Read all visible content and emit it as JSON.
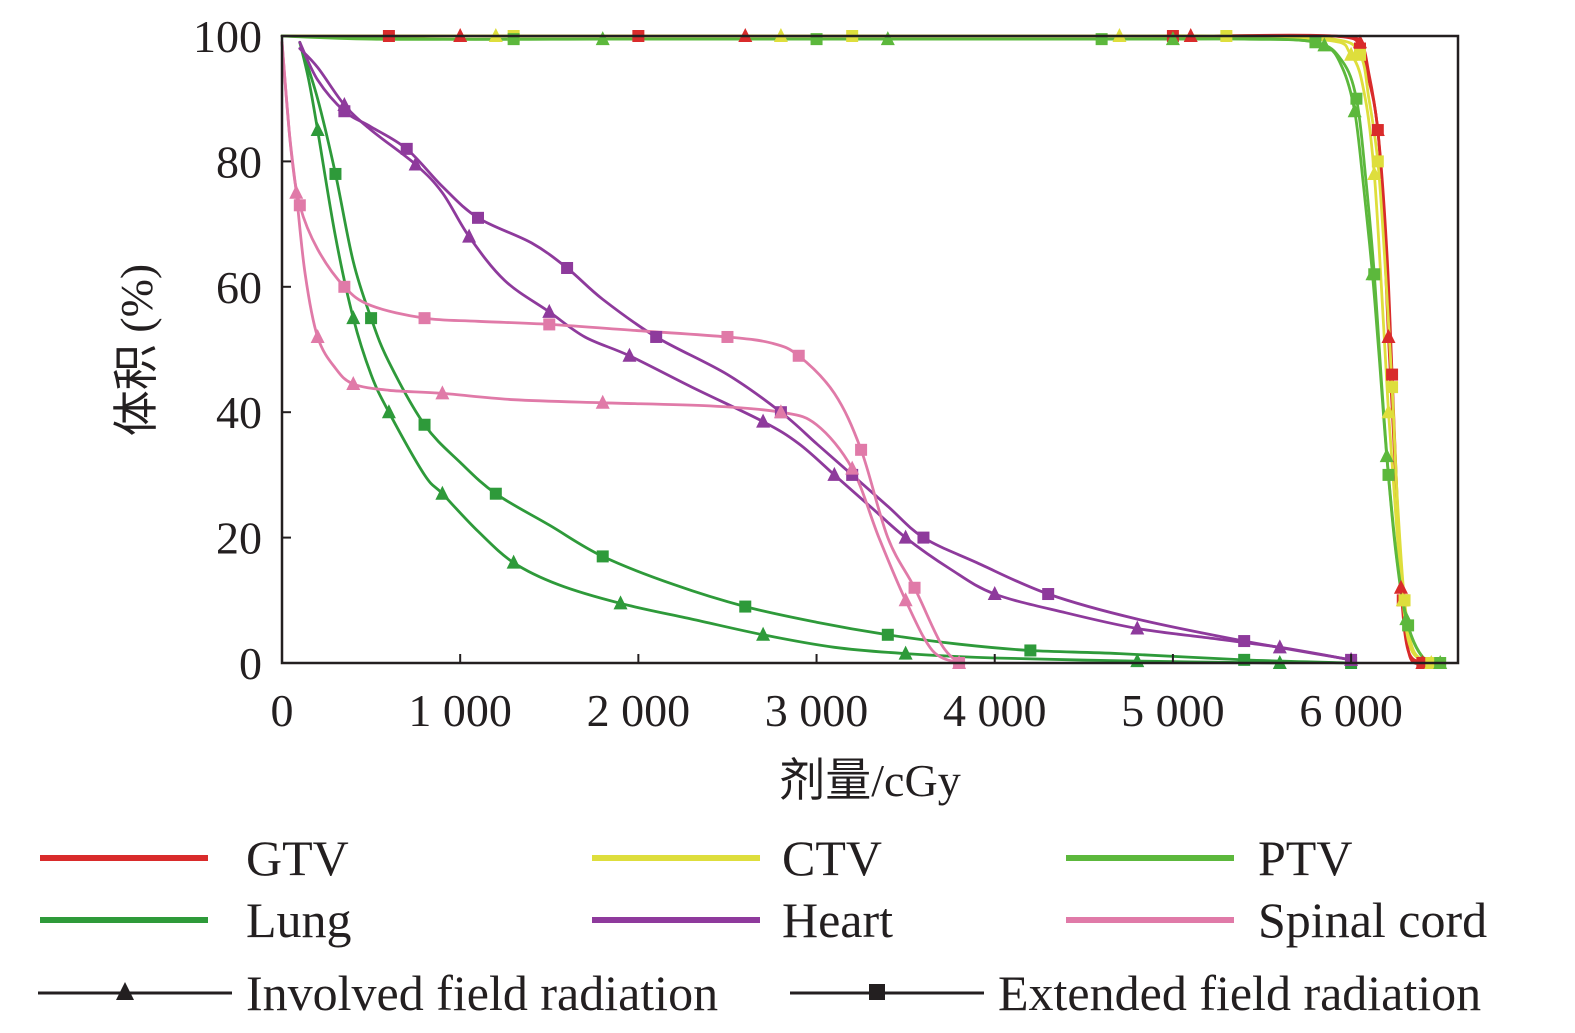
{
  "chart_data": {
    "type": "line",
    "title": "",
    "xlabel": "剂量/cGy",
    "ylabel": "体积 (%)",
    "xlim": [
      0,
      6600
    ],
    "ylim": [
      0,
      100
    ],
    "xticks": [
      0,
      1000,
      2000,
      3000,
      4000,
      5000,
      6000
    ],
    "xtick_labels": [
      "0",
      "1 000",
      "2 000",
      "3 000",
      "4 000",
      "5 000",
      "6 000"
    ],
    "yticks": [
      0,
      20,
      40,
      60,
      80,
      100
    ],
    "ytick_labels": [
      "0",
      "20",
      "40",
      "60",
      "80",
      "100"
    ],
    "grid": false,
    "legend": {
      "position": "bottom",
      "structures": [
        {
          "name": "GTV",
          "color": "#d92b2b"
        },
        {
          "name": "CTV",
          "color": "#dede3c"
        },
        {
          "name": "PTV",
          "color": "#5cb83c"
        },
        {
          "name": "Lung",
          "color": "#2e9a3a"
        },
        {
          "name": "Heart",
          "color": "#8e3a9c"
        },
        {
          "name": "Spinal cord",
          "color": "#e07aa8"
        }
      ],
      "markers": [
        {
          "name": "Involved field radiation",
          "marker": "triangle"
        },
        {
          "name": "Extended field radiation",
          "marker": "square"
        }
      ]
    },
    "series": [
      {
        "name": "GTV (Extended)",
        "structure": "GTV",
        "plan": "Extended",
        "color": "#d92b2b",
        "marker": "square",
        "x": [
          0,
          200,
          600,
          1400,
          2000,
          3500,
          5000,
          5900,
          6050,
          6100,
          6150,
          6200,
          6230,
          6260,
          6290,
          6330,
          6400
        ],
        "y": [
          100,
          100,
          100,
          100,
          100,
          100,
          100,
          100,
          98,
          93,
          85,
          66,
          46,
          25,
          10,
          1,
          0
        ]
      },
      {
        "name": "GTV (Involved)",
        "structure": "GTV",
        "plan": "Involved",
        "color": "#d92b2b",
        "marker": "triangle",
        "x": [
          0,
          200,
          1000,
          1800,
          2600,
          4200,
          5100,
          5900,
          6050,
          6100,
          6150,
          6180,
          6210,
          6250,
          6280,
          6320,
          6400
        ],
        "y": [
          100,
          100,
          100,
          100,
          100,
          100,
          100,
          100,
          99,
          94,
          85,
          72,
          52,
          30,
          12,
          2,
          0
        ]
      },
      {
        "name": "CTV (Extended)",
        "structure": "CTV",
        "plan": "Extended",
        "color": "#dede3c",
        "marker": "square",
        "x": [
          0,
          400,
          1300,
          2100,
          3200,
          4500,
          5300,
          5900,
          6050,
          6100,
          6150,
          6190,
          6230,
          6260,
          6300,
          6350,
          6450
        ],
        "y": [
          100,
          100,
          100,
          100,
          100,
          100,
          100,
          99.5,
          97,
          90,
          80,
          64,
          44,
          26,
          10,
          2,
          0
        ]
      },
      {
        "name": "CTV (Involved)",
        "structure": "CTV",
        "plan": "Involved",
        "color": "#dede3c",
        "marker": "triangle",
        "x": [
          0,
          400,
          1200,
          2000,
          2800,
          3700,
          4700,
          5800,
          6000,
          6080,
          6130,
          6170,
          6210,
          6250,
          6290,
          6340,
          6450
        ],
        "y": [
          100,
          100,
          100,
          100,
          100,
          100,
          100,
          99.5,
          97,
          90,
          78,
          60,
          40,
          24,
          10,
          2,
          0
        ]
      },
      {
        "name": "PTV (Extended)",
        "structure": "PTV",
        "plan": "Extended",
        "color": "#5cb83c",
        "marker": "square",
        "x": [
          0,
          500,
          1300,
          2200,
          3000,
          3800,
          4600,
          5400,
          5800,
          5950,
          6030,
          6080,
          6130,
          6170,
          6210,
          6260,
          6320,
          6400,
          6500
        ],
        "y": [
          100,
          99.5,
          99.5,
          99.5,
          99.5,
          99.5,
          99.5,
          99.5,
          99,
          96,
          90,
          78,
          62,
          45,
          30,
          16,
          6,
          1,
          0
        ]
      },
      {
        "name": "PTV (Involved)",
        "structure": "PTV",
        "plan": "Involved",
        "color": "#5cb83c",
        "marker": "triangle",
        "x": [
          0,
          900,
          1800,
          2600,
          3400,
          4200,
          5000,
          5600,
          5850,
          5950,
          6020,
          6070,
          6120,
          6160,
          6200,
          6250,
          6310,
          6400,
          6500
        ],
        "y": [
          100,
          99.5,
          99.5,
          99.5,
          99.5,
          99.5,
          99.5,
          99.5,
          98.5,
          95,
          88,
          76,
          62,
          48,
          33,
          18,
          7,
          1,
          0
        ]
      },
      {
        "name": "Lung (Extended)",
        "structure": "Lung",
        "plan": "Extended",
        "color": "#2e9a3a",
        "marker": "square",
        "x": [
          100,
          200,
          300,
          400,
          500,
          600,
          800,
          1000,
          1200,
          1500,
          1800,
          2200,
          2600,
          3000,
          3400,
          3800,
          4200,
          4700,
          5400,
          6000
        ],
        "y": [
          99,
          90,
          78,
          64,
          55,
          48,
          38,
          32,
          27,
          22,
          17,
          12.5,
          9,
          6.5,
          4.5,
          3,
          2,
          1.5,
          0.5,
          0
        ]
      },
      {
        "name": "Lung (Involved)",
        "structure": "Lung",
        "plan": "Involved",
        "color": "#2e9a3a",
        "marker": "triangle",
        "x": [
          100,
          150,
          200,
          300,
          400,
          500,
          600,
          800,
          900,
          1100,
          1300,
          1550,
          1900,
          2300,
          2700,
          3100,
          3500,
          4000,
          4800,
          5600
        ],
        "y": [
          99,
          93,
          85,
          68,
          55,
          46,
          40,
          30,
          27,
          21,
          16,
          12.5,
          9.5,
          7,
          4.5,
          2.5,
          1.5,
          0.8,
          0.3,
          0
        ]
      },
      {
        "name": "Heart (Extended)",
        "structure": "Heart",
        "plan": "Extended",
        "color": "#8e3a9c",
        "marker": "square",
        "x": [
          100,
          200,
          350,
          500,
          700,
          900,
          1100,
          1400,
          1600,
          1800,
          2100,
          2500,
          2800,
          3000,
          3200,
          3400,
          3600,
          3900,
          4300,
          4800,
          5400,
          6000
        ],
        "y": [
          99,
          93,
          88,
          85.5,
          82,
          76,
          71,
          67,
          63,
          58,
          52,
          46,
          40,
          35,
          30,
          25,
          20,
          16,
          11,
          7,
          3.5,
          0.5
        ]
      },
      {
        "name": "Heart (Involved)",
        "structure": "Heart",
        "plan": "Involved",
        "color": "#8e3a9c",
        "marker": "triangle",
        "x": [
          100,
          200,
          350,
          500,
          750,
          900,
          1050,
          1250,
          1500,
          1700,
          1950,
          2300,
          2700,
          2900,
          3100,
          3300,
          3500,
          3750,
          4000,
          4400,
          4800,
          5200,
          5600,
          6000
        ],
        "y": [
          98,
          95,
          89,
          85,
          79.5,
          75,
          68,
          61,
          56,
          52,
          49,
          44,
          38.5,
          35,
          30,
          25,
          20,
          15,
          11,
          8,
          5.5,
          4,
          2.5,
          0.5
        ]
      },
      {
        "name": "Spinal cord (Extended)",
        "structure": "Spinal cord",
        "plan": "Extended",
        "color": "#e07aa8",
        "marker": "square",
        "x": [
          0,
          50,
          100,
          200,
          350,
          500,
          800,
          1100,
          1500,
          2000,
          2500,
          2750,
          2900,
          3100,
          3250,
          3400,
          3550,
          3700,
          3800
        ],
        "y": [
          99,
          82,
          73,
          66,
          60,
          57,
          55,
          54.5,
          54,
          53,
          52,
          51,
          49,
          43,
          34,
          20,
          12,
          3,
          0
        ]
      },
      {
        "name": "Spinal cord (Involved)",
        "structure": "Spinal cord",
        "plan": "Involved",
        "color": "#e07aa8",
        "marker": "triangle",
        "x": [
          0,
          40,
          80,
          130,
          200,
          300,
          400,
          600,
          900,
          1300,
          1800,
          2400,
          2800,
          3000,
          3200,
          3350,
          3500,
          3650,
          3800
        ],
        "y": [
          99,
          85,
          75,
          62,
          52,
          47,
          44.5,
          43.5,
          43,
          42,
          41.5,
          41,
          40,
          38,
          31,
          20,
          10,
          2,
          0
        ]
      }
    ]
  }
}
